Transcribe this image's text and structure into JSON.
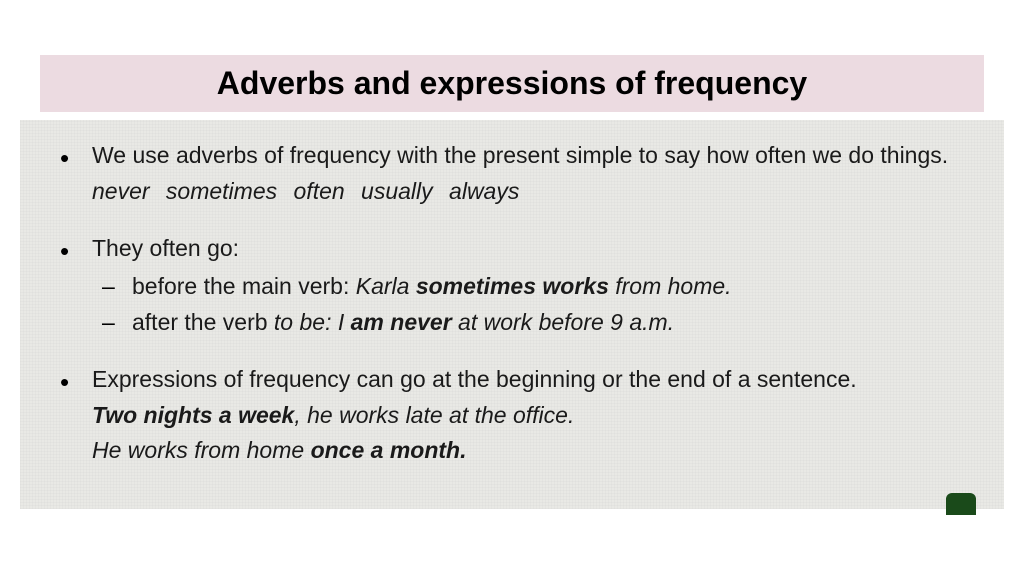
{
  "title": "Adverbs and expressions of frequency",
  "bullet1": {
    "line1": "We use adverbs of frequency with the present simple to say how often we do things.",
    "adverbs": "never   sometimes   often   usually   always"
  },
  "bullet2": {
    "intro": "They often go:",
    "sub1": {
      "pre": "before the main verb: ",
      "ex_pre": "Karla ",
      "ex_bold": "sometimes works",
      "ex_post": " from home."
    },
    "sub2": {
      "pre": "after the verb ",
      "tobe": "to be: I ",
      "ex_bold": "am never",
      "ex_post": " at work before 9 a.m."
    }
  },
  "bullet3": {
    "line1": "Expressions of frequency can go at the beginning or the end of a sentence.",
    "ex1_bold": "Two nights a week",
    "ex1_post": ", he works late at the office.",
    "ex2_pre": "He works from home ",
    "ex2_bold": "once a month."
  }
}
